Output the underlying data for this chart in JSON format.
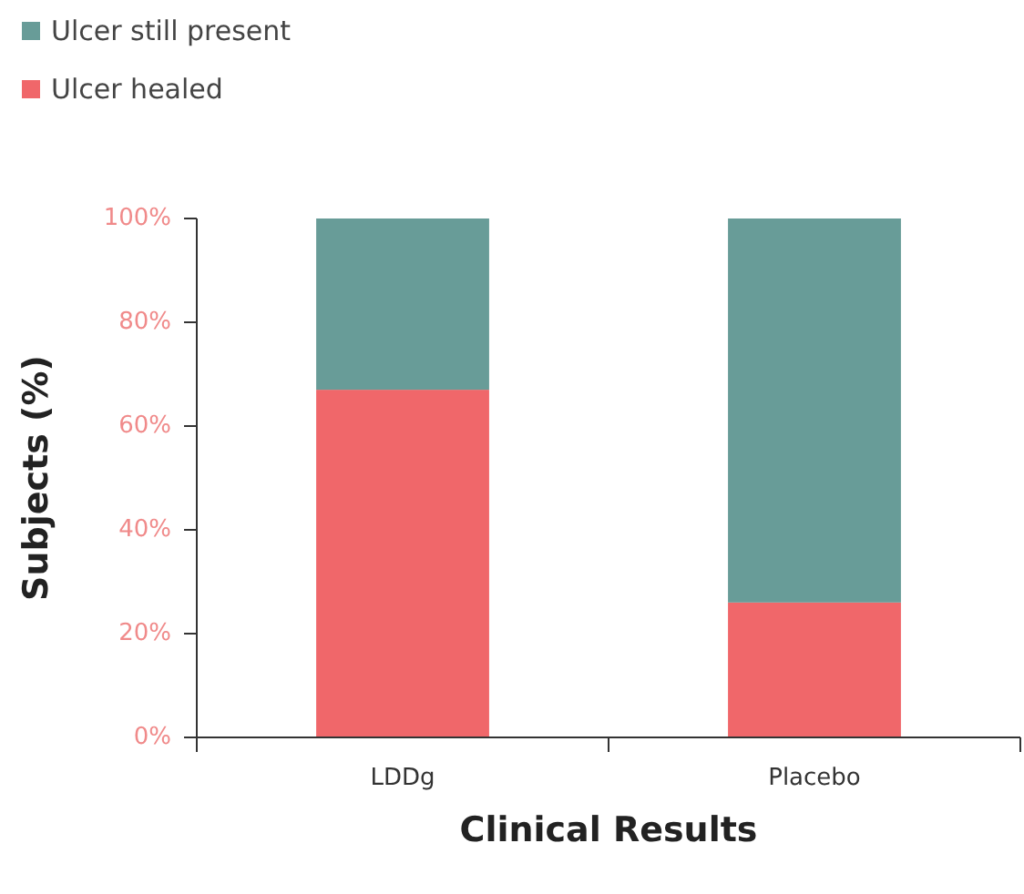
{
  "chart_data": {
    "type": "bar",
    "stacked": true,
    "xlabel": "Clinical Results",
    "ylabel": "Subjects (%)",
    "categories": [
      "LDDg",
      "Placebo"
    ],
    "series": [
      {
        "name": "Ulcer healed",
        "color": "#f0676a",
        "values": [
          67,
          26
        ]
      },
      {
        "name": "Ulcer still present",
        "color": "#689c98",
        "values": [
          33,
          74
        ]
      }
    ],
    "ylim": [
      0,
      100
    ],
    "yticks": [
      {
        "value": 0,
        "label": "0%"
      },
      {
        "value": 20,
        "label": "20%"
      },
      {
        "value": 40,
        "label": "40%"
      },
      {
        "value": 60,
        "label": "60%"
      },
      {
        "value": 80,
        "label": "80%"
      },
      {
        "value": 100,
        "label": "100%"
      }
    ],
    "grid": false,
    "legend": "top left"
  }
}
